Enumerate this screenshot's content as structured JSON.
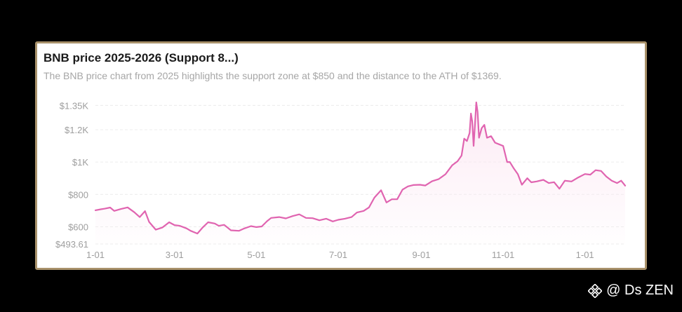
{
  "card": {
    "title": "BNB price 2025-2026 (Support 8...)",
    "subtitle": "The BNB price chart from 2025 highlights the support zone at $850 and the distance to the ATH of $1369."
  },
  "watermark": {
    "text": "@ Ds ZEN",
    "icon": "binance-logo-icon"
  },
  "chart_data": {
    "type": "area",
    "title": "BNB price 2025-2026 (Support 8...)",
    "xlabel": "",
    "ylabel": "",
    "ylim": [
      493.61,
      1369
    ],
    "xlim": [
      "2025-01-01",
      "2026-01-31"
    ],
    "grid": true,
    "legend": "none",
    "yticks": [
      {
        "value": 493.61,
        "label": "$493.61"
      },
      {
        "value": 600,
        "label": "$600"
      },
      {
        "value": 800,
        "label": "$800"
      },
      {
        "value": 1000,
        "label": "$1K"
      },
      {
        "value": 1200,
        "label": "$1.2K"
      },
      {
        "value": 1350,
        "label": "$1.35K"
      }
    ],
    "xticks": [
      {
        "date": "2025-01-01",
        "label": "1-01"
      },
      {
        "date": "2025-03-01",
        "label": "3-01"
      },
      {
        "date": "2025-05-01",
        "label": "5-01"
      },
      {
        "date": "2025-07-01",
        "label": "7-01"
      },
      {
        "date": "2025-09-01",
        "label": "9-01"
      },
      {
        "date": "2025-11-01",
        "label": "11-01"
      },
      {
        "date": "2026-01-01",
        "label": "1-01"
      }
    ],
    "colors": {
      "line": "#e064b0",
      "fill": "#fce8f3",
      "grid": "#ececec",
      "tick_text": "#9e9e9e"
    },
    "series": [
      {
        "x": [
          "2025-01-01",
          "2025-01-05",
          "2025-01-08",
          "2025-01-12",
          "2025-01-15",
          "2025-01-20",
          "2025-01-25",
          "2025-01-30",
          "2025-02-03",
          "2025-02-07",
          "2025-02-10",
          "2025-02-15",
          "2025-02-20",
          "2025-02-25",
          "2025-03-01",
          "2025-03-05",
          "2025-03-10",
          "2025-03-13",
          "2025-03-18",
          "2025-03-22",
          "2025-03-26",
          "2025-03-31",
          "2025-04-03",
          "2025-04-07",
          "2025-04-12",
          "2025-04-18",
          "2025-04-22",
          "2025-04-27",
          "2025-05-01",
          "2025-05-05",
          "2025-05-09",
          "2025-05-12",
          "2025-05-18",
          "2025-05-23",
          "2025-05-28",
          "2025-06-02",
          "2025-06-07",
          "2025-06-12",
          "2025-06-17",
          "2025-06-22",
          "2025-06-27",
          "2025-07-01",
          "2025-07-06",
          "2025-07-11",
          "2025-07-15",
          "2025-07-20",
          "2025-07-24",
          "2025-07-28",
          "2025-08-02",
          "2025-08-06",
          "2025-08-10",
          "2025-08-14",
          "2025-08-18",
          "2025-08-22",
          "2025-08-26",
          "2025-08-31",
          "2025-09-04",
          "2025-09-09",
          "2025-09-14",
          "2025-09-19",
          "2025-09-24",
          "2025-09-28",
          "2025-10-01",
          "2025-10-03",
          "2025-10-05",
          "2025-10-07",
          "2025-10-08",
          "2025-10-09",
          "2025-10-10",
          "2025-10-11",
          "2025-10-12",
          "2025-10-13",
          "2025-10-14",
          "2025-10-16",
          "2025-10-18",
          "2025-10-20",
          "2025-10-23",
          "2025-10-26",
          "2025-10-29",
          "2025-11-01",
          "2025-11-04",
          "2025-11-06",
          "2025-11-09",
          "2025-11-12",
          "2025-11-15",
          "2025-11-19",
          "2025-11-22",
          "2025-11-26",
          "2025-12-01",
          "2025-12-05",
          "2025-12-09",
          "2025-12-13",
          "2025-12-17",
          "2025-12-22",
          "2025-12-27",
          "2026-01-01",
          "2026-01-05",
          "2026-01-09",
          "2026-01-13",
          "2026-01-17",
          "2026-01-21",
          "2026-01-25",
          "2026-01-28",
          "2026-01-31"
        ],
        "y": [
          702,
          708,
          712,
          719,
          698,
          710,
          720,
          690,
          660,
          697,
          630,
          582,
          596,
          628,
          610,
          606,
          590,
          575,
          558,
          596,
          628,
          620,
          606,
          612,
          578,
          575,
          590,
          604,
          598,
          602,
          635,
          655,
          660,
          652,
          666,
          677,
          655,
          653,
          640,
          650,
          633,
          643,
          650,
          660,
          688,
          698,
          720,
          780,
          826,
          750,
          770,
          770,
          830,
          850,
          858,
          860,
          855,
          882,
          895,
          925,
          980,
          1005,
          1040,
          1145,
          1130,
          1180,
          1300,
          1250,
          1100,
          1230,
          1369,
          1310,
          1150,
          1210,
          1230,
          1150,
          1160,
          1120,
          1110,
          1100,
          1000,
          1000,
          960,
          925,
          860,
          900,
          875,
          880,
          890,
          870,
          876,
          835,
          885,
          880,
          905,
          926,
          922,
          950,
          945,
          910,
          885,
          870,
          885,
          854
        ]
      }
    ]
  }
}
